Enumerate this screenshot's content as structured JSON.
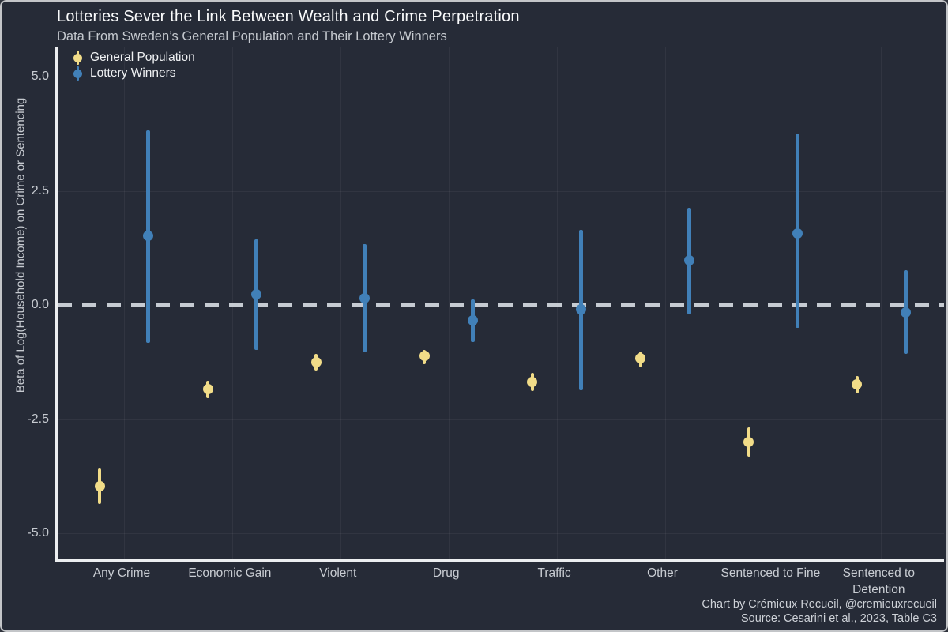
{
  "title": "Lotteries Sever the Link Between Wealth and Crime Perpetration",
  "subtitle": "Data From Sweden’s General Population and Their Lottery Winners",
  "y_axis": {
    "label": "Beta of Log(Household Income) on Crime or Sentencing",
    "ticks": [
      "5.0",
      "2.5",
      "0.0",
      "-2.5",
      "-5.0"
    ]
  },
  "legend": {
    "items": [
      {
        "label": "General Population",
        "color": "#f1dc88"
      },
      {
        "label": "Lottery Winners",
        "color": "#4180b8"
      }
    ]
  },
  "captions": {
    "line1": "Chart by Crémieux Recueil, @cremieuxrecueil",
    "line2": "Source: Cesarini et al., 2023, Table C3"
  },
  "colors": {
    "background": "#262b37",
    "axis_spine": "#eceef0",
    "zero_line": "#c6cbd2",
    "general_population": "#f1dc88",
    "lottery_winners": "#4180b8",
    "text_primary": "#fafbfc",
    "text_secondary": "#c6cad0"
  },
  "chart_data": {
    "type": "scatter",
    "subtype": "pointrange (point estimate with error bars), dodged by group",
    "title": "Lotteries Sever the Link Between Wealth and Crime Perpetration",
    "subtitle": "Data From Sweden’s General Population and Their Lottery Winners",
    "xlabel": "",
    "ylabel": "Beta of Log(Household Income) on Crime or Sentencing",
    "ylim": [
      -5.6,
      5.65
    ],
    "yticks": [
      5.0,
      2.5,
      0.0,
      -2.5,
      -5.0
    ],
    "reference_line_y": 0.0,
    "grid": "on",
    "legend_position": "top-left",
    "categories": [
      "Any Crime",
      "Economic Gain",
      "Violent",
      "Drug",
      "Traffic",
      "Other",
      "Sentenced to Fine",
      "Sentenced to Detention"
    ],
    "series": [
      {
        "name": "General Population",
        "color": "#f1dc88",
        "estimates": [
          -3.97,
          -1.85,
          -1.25,
          -1.12,
          -1.68,
          -1.17,
          -3.0,
          -1.74
        ],
        "ci_low": [
          -4.36,
          -2.05,
          -1.43,
          -1.3,
          -1.89,
          -1.36,
          -3.33,
          -1.93
        ],
        "ci_high": [
          -3.58,
          -1.66,
          -1.07,
          -0.98,
          -1.49,
          -1.02,
          -2.68,
          -1.56
        ]
      },
      {
        "name": "Lottery Winners",
        "color": "#4180b8",
        "estimates": [
          1.52,
          0.23,
          0.14,
          -0.33,
          -0.1,
          0.97,
          1.56,
          -0.16
        ],
        "ci_low": [
          -0.83,
          -0.99,
          -1.04,
          -0.81,
          -1.86,
          -0.2,
          -0.51,
          -1.08
        ],
        "ci_high": [
          3.83,
          1.44,
          1.34,
          0.12,
          1.64,
          2.13,
          3.76,
          0.76
        ]
      }
    ]
  }
}
